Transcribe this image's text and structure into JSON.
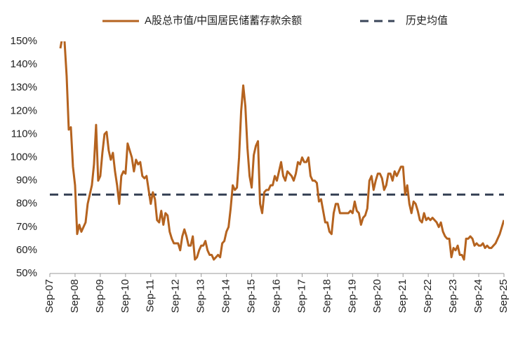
{
  "chart_data": {
    "type": "line",
    "series": [
      {
        "name": "A股总市值/中国居民储蓄存款余额",
        "color": "#b5631f",
        "values": [
          null,
          null,
          null,
          null,
          null,
          147,
          152,
          150,
          135,
          112,
          113,
          96,
          88,
          67,
          71,
          68,
          70,
          72,
          80,
          84,
          88,
          97,
          114,
          90,
          92,
          102,
          110,
          111,
          103,
          99,
          102,
          94,
          88,
          80,
          92,
          94,
          93,
          106,
          103,
          100,
          94,
          99,
          97,
          98,
          92,
          91,
          92,
          86,
          80,
          85,
          82,
          73,
          72,
          77,
          71,
          76,
          75,
          68,
          65,
          63,
          63,
          63,
          60,
          66,
          69,
          66,
          62,
          62,
          66,
          56,
          57,
          60,
          62,
          62,
          64,
          60,
          58,
          58,
          56,
          57,
          58,
          57,
          63,
          64,
          68,
          70,
          78,
          88,
          86,
          87,
          100,
          120,
          131,
          122,
          104,
          92,
          87,
          101,
          105,
          107,
          80,
          76,
          85,
          86,
          86,
          88,
          88,
          92,
          90,
          94,
          98,
          92,
          90,
          94,
          93,
          92,
          90,
          93,
          98,
          97,
          100,
          98,
          98,
          100,
          92,
          90,
          90,
          89,
          81,
          82,
          77,
          72,
          72,
          68,
          67,
          76,
          80,
          80,
          76,
          76,
          76,
          76,
          76,
          77,
          76,
          81,
          77,
          76,
          71,
          74,
          75,
          78,
          90,
          92,
          86,
          90,
          93,
          93,
          91,
          86,
          88,
          93,
          93,
          90,
          94,
          92,
          94,
          96,
          96,
          84,
          88,
          80,
          76,
          81,
          80,
          77,
          73,
          72,
          76,
          73,
          74,
          73,
          74,
          73,
          72,
          70,
          72,
          68,
          66,
          65,
          65,
          57,
          61,
          60,
          62,
          58,
          58,
          56,
          65,
          65,
          66,
          65,
          62,
          63,
          62,
          62,
          63,
          61,
          62,
          61,
          61,
          62,
          63,
          65,
          67,
          70,
          73
        ]
      }
    ],
    "reference_line": {
      "name": "历史均值",
      "color": "#3a4558",
      "value": 84
    },
    "categories": [
      "Sep-07",
      null,
      null,
      null,
      null,
      null,
      null,
      null,
      null,
      null,
      null,
      null,
      "Sep-08",
      null,
      null,
      null,
      null,
      null,
      null,
      null,
      null,
      null,
      null,
      null,
      "Sep-09",
      null,
      null,
      null,
      null,
      null,
      null,
      null,
      null,
      null,
      null,
      null,
      "Sep-10",
      null,
      null,
      null,
      null,
      null,
      null,
      null,
      null,
      null,
      null,
      null,
      "Sep-11",
      null,
      null,
      null,
      null,
      null,
      null,
      null,
      null,
      null,
      null,
      null,
      "Sep-12",
      null,
      null,
      null,
      null,
      null,
      null,
      null,
      null,
      null,
      null,
      null,
      "Sep-13",
      null,
      null,
      null,
      null,
      null,
      null,
      null,
      null,
      null,
      null,
      null,
      "Sep-14",
      null,
      null,
      null,
      null,
      null,
      null,
      null,
      null,
      null,
      null,
      null,
      "Sep-15",
      null,
      null,
      null,
      null,
      null,
      null,
      null,
      null,
      null,
      null,
      null,
      "Sep-16",
      null,
      null,
      null,
      null,
      null,
      null,
      null,
      null,
      null,
      null,
      null,
      "Sep-17",
      null,
      null,
      null,
      null,
      null,
      null,
      null,
      null,
      null,
      null,
      null,
      "Sep-18",
      null,
      null,
      null,
      null,
      null,
      null,
      null,
      null,
      null,
      null,
      null,
      "Sep-19",
      null,
      null,
      null,
      null,
      null,
      null,
      null,
      null,
      null,
      null,
      null,
      "Sep-20",
      null,
      null,
      null,
      null,
      null,
      null,
      null,
      null,
      null,
      null,
      null,
      "Sep-21",
      null,
      null,
      null,
      null,
      null,
      null,
      null,
      null,
      null,
      null,
      null,
      "Sep-22",
      null,
      null,
      null,
      null,
      null,
      null,
      null,
      null,
      null,
      null,
      null,
      "Sep-23",
      null,
      null,
      null,
      null,
      null,
      null,
      null,
      null,
      null,
      null,
      null,
      "Sep-24",
      null,
      null,
      null,
      null,
      null,
      null,
      null,
      null,
      null,
      null,
      null,
      "Sep-25"
    ],
    "ylim": [
      50,
      150
    ],
    "yticks": [
      {
        "value": 50,
        "label": "50%"
      },
      {
        "value": 60,
        "label": "60%"
      },
      {
        "value": 70,
        "label": "70%"
      },
      {
        "value": 80,
        "label": "80%"
      },
      {
        "value": 90,
        "label": "90%"
      },
      {
        "value": 100,
        "label": "100%"
      },
      {
        "value": 110,
        "label": "110%"
      },
      {
        "value": 120,
        "label": "120%"
      },
      {
        "value": 130,
        "label": "130%"
      },
      {
        "value": 140,
        "label": "140%"
      },
      {
        "value": 150,
        "label": "150%"
      }
    ],
    "grid": false,
    "legend": "top"
  }
}
